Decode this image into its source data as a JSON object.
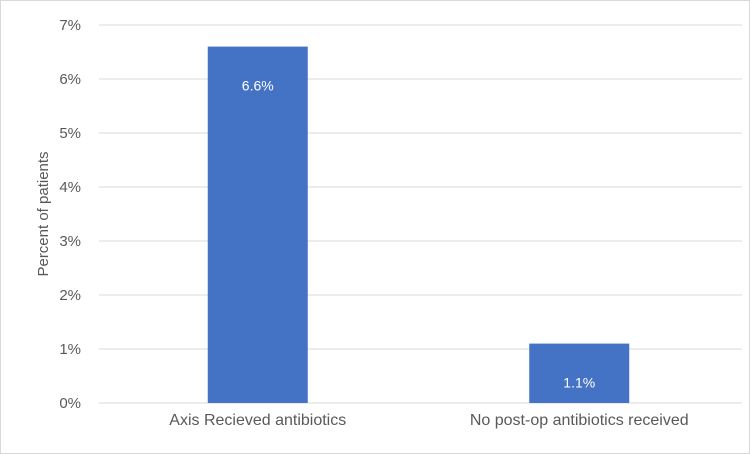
{
  "chart_data": {
    "type": "bar",
    "categories": [
      "Axis Recieved antibiotics",
      "No post-op antibiotics received"
    ],
    "values": [
      6.6,
      1.1
    ],
    "data_labels": [
      "6.6%",
      "1.1%"
    ],
    "title": "",
    "xlabel": "",
    "ylabel": "Percent of patients",
    "ylim": [
      0,
      7
    ],
    "yticks": [
      0,
      1,
      2,
      3,
      4,
      5,
      6,
      7
    ],
    "ytick_labels": [
      "0%",
      "1%",
      "2%",
      "3%",
      "4%",
      "5%",
      "6%",
      "7%"
    ],
    "grid": true,
    "legend": "none",
    "bar_color": "#4472c4",
    "grid_color": "#d9d9d9",
    "text_color": "#595959"
  }
}
